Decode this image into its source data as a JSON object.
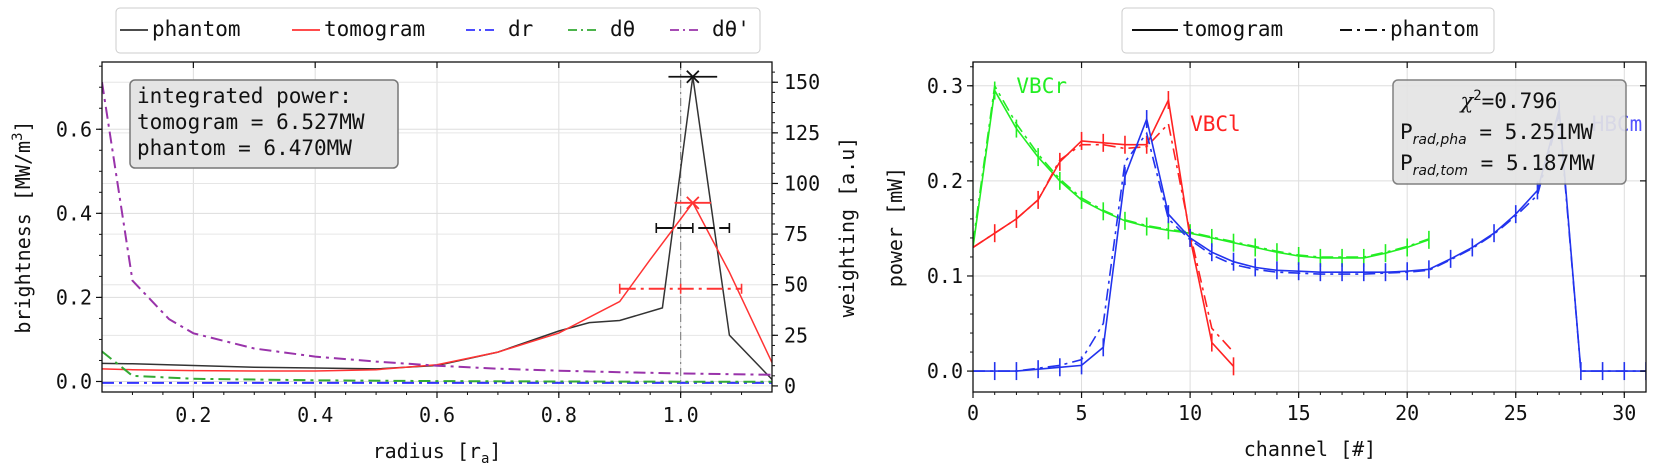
{
  "legend_left": {
    "entries": [
      {
        "label": "phantom",
        "color": "#333333",
        "dash": ""
      },
      {
        "label": "tomogram",
        "color": "#ff3333",
        "dash": ""
      },
      {
        "label": "dr",
        "color": "#3333ff",
        "dash": "12,5,3,5"
      },
      {
        "label": "dθ",
        "color": "#33aa33",
        "dash": "12,5,3,5"
      },
      {
        "label": "dθ'",
        "color": "#9933aa",
        "dash": "12,5,3,5"
      }
    ]
  },
  "legend_right": {
    "entries": [
      {
        "label": "tomogram",
        "color": "#111111",
        "dash": ""
      },
      {
        "label": "phantom",
        "color": "#111111",
        "dash": "12,5,3,5"
      }
    ]
  },
  "left_box": {
    "line1": "integrated power:",
    "line2": "tomogram = 6.527MW",
    "line3": "phantom = 6.470MW"
  },
  "right_box": {
    "chi_symbol": "χ",
    "chi_sup": "2",
    "chi_value": "=0.796",
    "pha_base": "P",
    "pha_sub": "rad,pha",
    "pha_value": " = 5.251MW",
    "tom_base": "P",
    "tom_sub": "rad,tom",
    "tom_value": " = 5.187MW"
  },
  "chart_data": [
    {
      "type": "line",
      "xlabel": "radius [r",
      "xlabel_sub": "a",
      "xlabel_end": "]",
      "ylabel": "brightness [MW/m",
      "ylabel_sup": "3",
      "ylabel_end": "]",
      "y2label": "weighting [a.u]",
      "xlim": [
        0.05,
        1.15
      ],
      "ylim": [
        -0.025,
        0.76
      ],
      "y2lim": [
        -3,
        160
      ],
      "xticks": [
        "0.2",
        "0.4",
        "0.6",
        "0.8",
        "1.0"
      ],
      "yticks": [
        "0.0",
        "0.2",
        "0.4",
        "0.6"
      ],
      "y2ticks": [
        "0",
        "25",
        "50",
        "75",
        "100",
        "125",
        "150"
      ],
      "grid": true,
      "series": [
        {
          "name": "phantom",
          "color": "#333333",
          "axis": "left",
          "x": [
            0.05,
            0.1,
            0.2,
            0.3,
            0.4,
            0.5,
            0.6,
            0.7,
            0.8,
            0.85,
            0.9,
            0.97,
            1.02,
            1.08,
            1.15
          ],
          "y": [
            0.043,
            0.042,
            0.038,
            0.034,
            0.032,
            0.03,
            0.038,
            0.07,
            0.12,
            0.14,
            0.145,
            0.175,
            0.725,
            0.11,
            0.005
          ]
        },
        {
          "name": "tomogram",
          "color": "#ff3333",
          "axis": "left",
          "x": [
            0.05,
            0.1,
            0.2,
            0.3,
            0.4,
            0.5,
            0.6,
            0.7,
            0.8,
            0.9,
            0.95,
            1.02,
            1.08,
            1.15
          ],
          "y": [
            0.03,
            0.028,
            0.026,
            0.025,
            0.025,
            0.028,
            0.04,
            0.07,
            0.115,
            0.19,
            0.29,
            0.425,
            0.26,
            0.045
          ]
        },
        {
          "name": "dr",
          "color": "#3333ff",
          "axis": "right",
          "dash": "12,5,3,5",
          "x": [
            0.05,
            0.3,
            0.6,
            0.9,
            1.15
          ],
          "y": [
            1.5,
            1.5,
            1.5,
            1.5,
            1.5
          ]
        },
        {
          "name": "dθ",
          "color": "#33aa33",
          "axis": "right",
          "dash": "12,5,3,5",
          "x": [
            0.05,
            0.1,
            0.2,
            0.4,
            0.6,
            0.8,
            1.0,
            1.15
          ],
          "y": [
            17,
            5,
            3.5,
            2.8,
            2.4,
            2.2,
            2.1,
            2.1
          ]
        },
        {
          "name": "dθ'",
          "color": "#9933aa",
          "axis": "right",
          "dash": "12,5,3,5",
          "x": [
            0.05,
            0.1,
            0.16,
            0.2,
            0.3,
            0.4,
            0.5,
            0.6,
            0.7,
            0.8,
            0.9,
            1.0,
            1.15
          ],
          "y": [
            150,
            52,
            33,
            26,
            18.5,
            14.5,
            12,
            10,
            8.5,
            7.5,
            6.8,
            6.2,
            5.5
          ]
        }
      ],
      "markers": [
        {
          "x": 1.02,
          "y": 0.725,
          "xerr": 0.04,
          "color": "#111111"
        },
        {
          "x": 1.02,
          "y": 0.425,
          "xerr": 0.03,
          "color": "#ff3333"
        }
      ],
      "weight_bars": [
        {
          "x1": 0.96,
          "x2": 1.08,
          "y": 78,
          "color": "#111111",
          "dash": "16,5"
        },
        {
          "x1": 0.9,
          "x2": 1.1,
          "y": 48,
          "color": "#ff3333",
          "dash": "16,5,3,5"
        }
      ],
      "vline": {
        "x": 1.0,
        "color": "#888888"
      }
    },
    {
      "type": "line",
      "xlabel": "channel [#]",
      "ylabel": "power [mW]",
      "xlim": [
        0,
        31
      ],
      "ylim": [
        -0.022,
        0.325
      ],
      "xticks": [
        "0",
        "5",
        "10",
        "15",
        "20",
        "25",
        "30"
      ],
      "yticks": [
        "0.0",
        "0.1",
        "0.2",
        "0.3"
      ],
      "grid": true,
      "annotations": [
        {
          "text": "VBCr",
          "x": 2.0,
          "y": 0.3,
          "color": "#22ee22"
        },
        {
          "text": "VBCl",
          "x": 10.0,
          "y": 0.26,
          "color": "#ff2222"
        },
        {
          "text": "HBCm",
          "x": 28.5,
          "y": 0.26,
          "color": "#5555ff"
        }
      ],
      "series": [
        {
          "name": "VBCr tomogram",
          "color": "#22ee22",
          "x": [
            0,
            1,
            2,
            3,
            4,
            5,
            6,
            7,
            8,
            9,
            10,
            11,
            12,
            13,
            14,
            15,
            16,
            17,
            18,
            19,
            20,
            21
          ],
          "y": [
            0.13,
            0.295,
            0.255,
            0.225,
            0.2,
            0.18,
            0.168,
            0.158,
            0.152,
            0.148,
            0.145,
            0.14,
            0.135,
            0.13,
            0.125,
            0.121,
            0.119,
            0.119,
            0.119,
            0.124,
            0.13,
            0.138
          ]
        },
        {
          "name": "VBCr phantom",
          "color": "#22ee22",
          "dash": "12,5,3,5",
          "x": [
            0,
            1,
            2,
            3,
            4,
            5,
            6,
            7,
            8,
            9,
            10,
            11,
            12,
            13,
            14,
            15,
            16,
            17,
            18,
            19,
            20,
            21
          ],
          "y": [
            0.135,
            0.3,
            0.26,
            0.228,
            0.202,
            0.182,
            0.169,
            0.159,
            0.153,
            0.149,
            0.146,
            0.141,
            0.136,
            0.131,
            0.126,
            0.122,
            0.12,
            0.12,
            0.12,
            0.125,
            0.131,
            0.139
          ]
        },
        {
          "name": "VBCl tomogram",
          "color": "#ff2222",
          "x": [
            0,
            1,
            2,
            3,
            4,
            5,
            6,
            7,
            8,
            9,
            10,
            11,
            12
          ],
          "y": [
            0.13,
            0.145,
            0.16,
            0.18,
            0.22,
            0.242,
            0.24,
            0.238,
            0.238,
            0.285,
            0.14,
            0.03,
            0.005
          ]
        },
        {
          "name": "VBCl phantom",
          "color": "#ff2222",
          "dash": "12,5,3,5",
          "x": [
            0,
            1,
            2,
            3,
            4,
            5,
            6,
            7,
            8,
            9,
            10,
            11,
            12
          ],
          "y": [
            0.13,
            0.145,
            0.16,
            0.18,
            0.222,
            0.238,
            0.238,
            0.234,
            0.236,
            0.26,
            0.145,
            0.045,
            0.02
          ]
        },
        {
          "name": "HBCm tomogram",
          "color": "#2233ee",
          "x": [
            0,
            1,
            2,
            3,
            4,
            5,
            6,
            7,
            8,
            9,
            10,
            11,
            12,
            13,
            14,
            15,
            16,
            17,
            18,
            19,
            20,
            21,
            22,
            23,
            24,
            25,
            26,
            27,
            28,
            29,
            30,
            31
          ],
          "y": [
            0.0,
            0.0,
            0.0,
            0.002,
            0.004,
            0.006,
            0.025,
            0.205,
            0.265,
            0.165,
            0.14,
            0.125,
            0.115,
            0.109,
            0.106,
            0.105,
            0.104,
            0.104,
            0.104,
            0.104,
            0.105,
            0.107,
            0.118,
            0.13,
            0.145,
            0.165,
            0.19,
            0.275,
            0.0,
            0.0,
            0.0,
            0.0
          ]
        },
        {
          "name": "HBCm phantom",
          "color": "#2233ee",
          "dash": "12,5,3,5",
          "x": [
            0,
            1,
            2,
            3,
            4,
            5,
            6,
            7,
            8,
            9,
            10,
            11,
            12,
            13,
            14,
            15,
            16,
            17,
            18,
            19,
            20,
            21,
            22,
            23,
            24,
            25,
            26,
            27,
            28,
            29,
            30,
            31
          ],
          "y": [
            0.0,
            0.0,
            0.0,
            0.003,
            0.006,
            0.012,
            0.05,
            0.22,
            0.25,
            0.16,
            0.138,
            0.122,
            0.112,
            0.107,
            0.104,
            0.103,
            0.102,
            0.102,
            0.102,
            0.103,
            0.104,
            0.106,
            0.117,
            0.129,
            0.144,
            0.163,
            0.185,
            0.27,
            0.0,
            0.0,
            0.0,
            0.0
          ]
        }
      ]
    }
  ]
}
